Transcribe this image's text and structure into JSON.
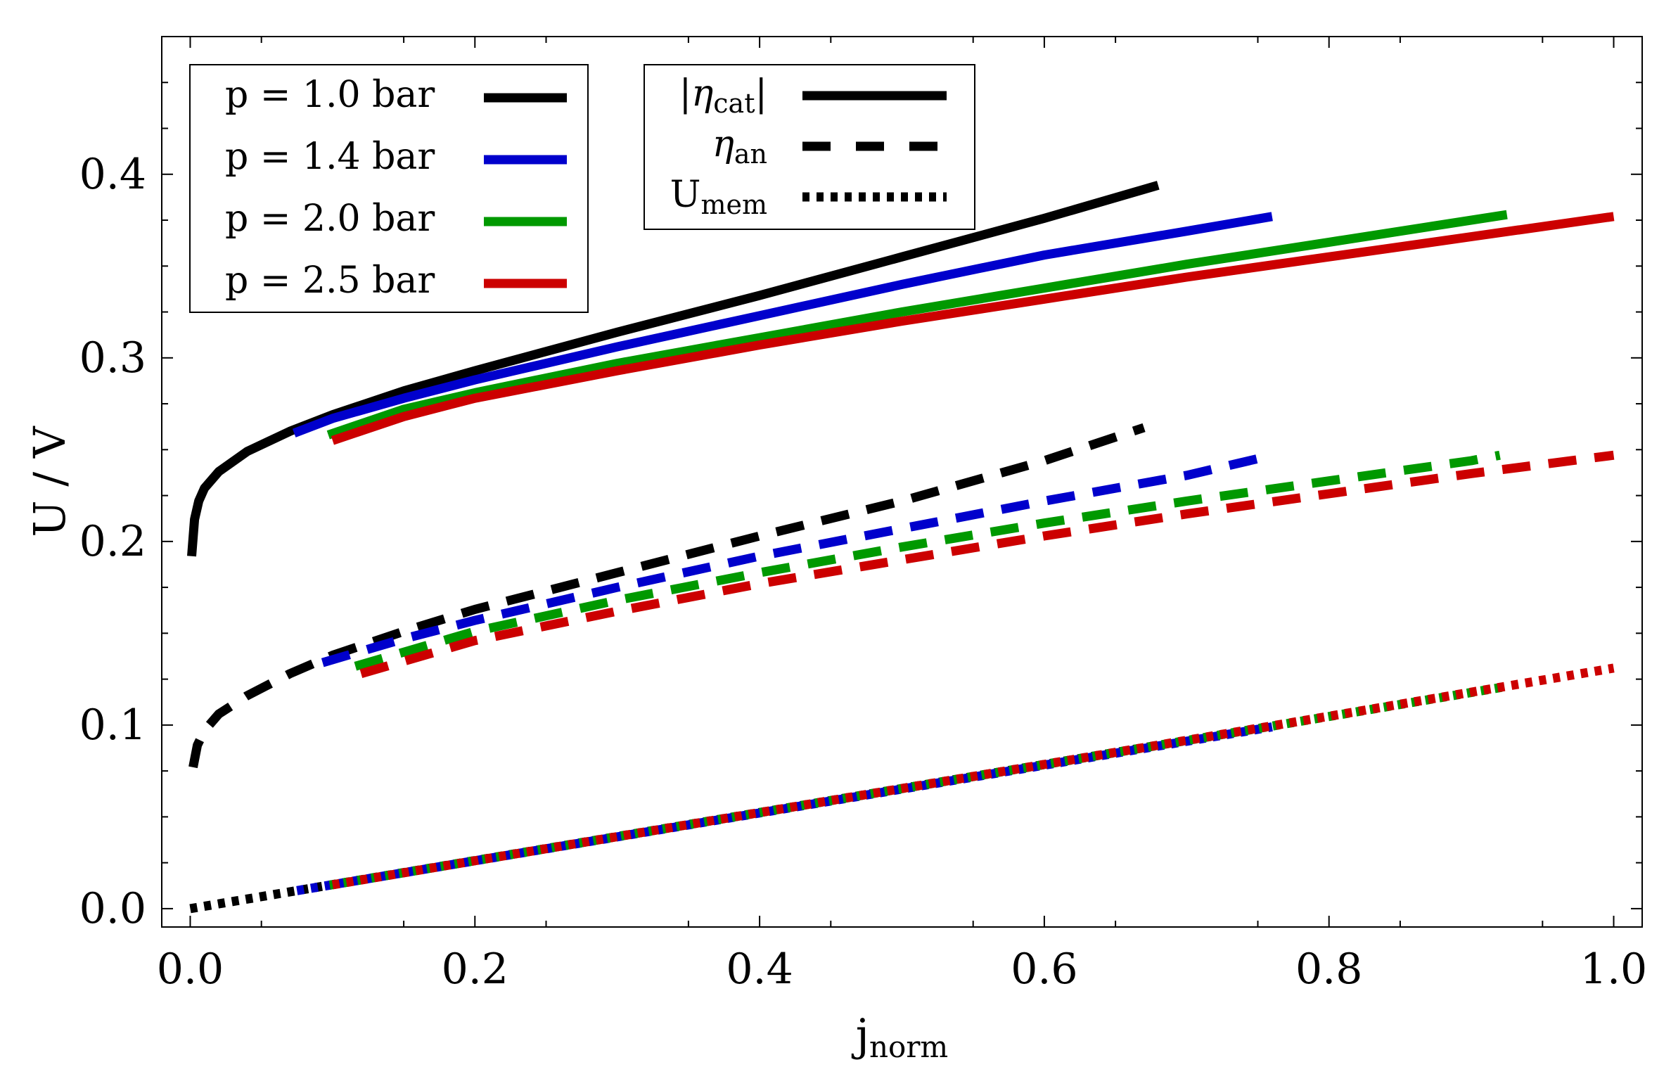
{
  "chart_data": {
    "type": "line",
    "xlabel": "j",
    "xlabel_sub": "norm",
    "ylabel": "U / V",
    "xlim": [
      -0.02,
      1.02
    ],
    "ylim": [
      -0.01,
      0.475
    ],
    "x_ticks": [
      "0.0",
      "0.2",
      "0.4",
      "0.6",
      "0.8",
      "1.0"
    ],
    "x_tick_values": [
      0,
      0.2,
      0.4,
      0.6,
      0.8,
      1.0
    ],
    "y_ticks": [
      "0.0",
      "0.1",
      "0.2",
      "0.3",
      "0.4"
    ],
    "y_tick_values": [
      0,
      0.1,
      0.2,
      0.3,
      0.4
    ],
    "grid": false,
    "colors": {
      "p1": "#000000",
      "p2": "#0000cc",
      "p3": "#009900",
      "p4": "#cc0000"
    },
    "pressure_legend": {
      "placement": "top-left",
      "entries": [
        {
          "label": "p = 1.0 bar",
          "color": "#000000"
        },
        {
          "label": "p = 1.4 bar",
          "color": "#0000cc"
        },
        {
          "label": "p = 2.0 bar",
          "color": "#009900"
        },
        {
          "label": "p = 2.5 bar",
          "color": "#cc0000"
        }
      ]
    },
    "style_legend": {
      "placement": "top-center",
      "entries": [
        {
          "symbol": "|η",
          "sub": "cat",
          "suffix": "|",
          "style": "solid"
        },
        {
          "symbol": "η",
          "sub": "an",
          "suffix": "",
          "style": "dashed"
        },
        {
          "symbol": "U",
          "sub": "mem",
          "suffix": "",
          "style": "dotted"
        }
      ]
    },
    "series": [
      {
        "pressure": "p = 1.0 bar",
        "quantity": "|η_cat|",
        "color": "#000000",
        "style": "solid",
        "x": [
          0.001,
          0.003,
          0.006,
          0.01,
          0.02,
          0.04,
          0.07,
          0.1,
          0.15,
          0.2,
          0.3,
          0.4,
          0.5,
          0.6,
          0.68
        ],
        "y": [
          0.192,
          0.212,
          0.222,
          0.229,
          0.238,
          0.249,
          0.26,
          0.269,
          0.282,
          0.293,
          0.314,
          0.334,
          0.355,
          0.376,
          0.394
        ]
      },
      {
        "pressure": "p = 1.4 bar",
        "quantity": "|η_cat|",
        "color": "#0000cc",
        "style": "solid",
        "x": [
          0.073,
          0.1,
          0.15,
          0.2,
          0.3,
          0.4,
          0.5,
          0.6,
          0.7,
          0.76
        ],
        "y": [
          0.259,
          0.267,
          0.278,
          0.288,
          0.306,
          0.323,
          0.34,
          0.356,
          0.369,
          0.377
        ]
      },
      {
        "pressure": "p = 2.0 bar",
        "quantity": "|η_cat|",
        "color": "#009900",
        "style": "solid",
        "x": [
          0.097,
          0.15,
          0.2,
          0.3,
          0.4,
          0.5,
          0.6,
          0.7,
          0.8,
          0.925
        ],
        "y": [
          0.258,
          0.272,
          0.281,
          0.297,
          0.311,
          0.325,
          0.338,
          0.351,
          0.363,
          0.378
        ]
      },
      {
        "pressure": "p = 2.5 bar",
        "quantity": "|η_cat|",
        "color": "#cc0000",
        "style": "solid",
        "x": [
          0.1,
          0.15,
          0.2,
          0.3,
          0.4,
          0.5,
          0.6,
          0.7,
          0.8,
          0.9,
          1.0
        ],
        "y": [
          0.255,
          0.268,
          0.278,
          0.293,
          0.307,
          0.32,
          0.332,
          0.344,
          0.355,
          0.366,
          0.377
        ]
      },
      {
        "pressure": "p = 1.0 bar",
        "quantity": "η_an",
        "color": "#000000",
        "style": "dashed",
        "x": [
          0.002,
          0.005,
          0.01,
          0.02,
          0.04,
          0.07,
          0.1,
          0.15,
          0.2,
          0.3,
          0.4,
          0.5,
          0.6,
          0.67
        ],
        "y": [
          0.077,
          0.089,
          0.097,
          0.106,
          0.116,
          0.128,
          0.138,
          0.151,
          0.163,
          0.183,
          0.203,
          0.222,
          0.244,
          0.262
        ]
      },
      {
        "pressure": "p = 1.4 bar",
        "quantity": "η_an",
        "color": "#0000cc",
        "style": "dashed",
        "x": [
          0.093,
          0.15,
          0.2,
          0.3,
          0.4,
          0.5,
          0.6,
          0.7,
          0.755
        ],
        "y": [
          0.134,
          0.147,
          0.157,
          0.175,
          0.192,
          0.207,
          0.222,
          0.236,
          0.246
        ]
      },
      {
        "pressure": "p = 2.0 bar",
        "quantity": "η_an",
        "color": "#009900",
        "style": "dashed",
        "x": [
          0.116,
          0.2,
          0.3,
          0.4,
          0.5,
          0.6,
          0.7,
          0.8,
          0.9,
          0.92
        ],
        "y": [
          0.132,
          0.151,
          0.168,
          0.183,
          0.197,
          0.21,
          0.222,
          0.233,
          0.244,
          0.247
        ]
      },
      {
        "pressure": "p = 2.5 bar",
        "quantity": "η_an",
        "color": "#cc0000",
        "style": "dashed",
        "x": [
          0.12,
          0.2,
          0.3,
          0.4,
          0.5,
          0.6,
          0.7,
          0.8,
          0.9,
          1.0
        ],
        "y": [
          0.128,
          0.146,
          0.162,
          0.177,
          0.19,
          0.203,
          0.215,
          0.226,
          0.237,
          0.247
        ]
      },
      {
        "pressure": "p = 1.0 bar",
        "quantity": "U_mem",
        "color": "#000000",
        "style": "dotted",
        "x": [
          0.0,
          0.68
        ],
        "y": [
          0.0,
          0.089
        ]
      },
      {
        "pressure": "p = 1.4 bar",
        "quantity": "U_mem",
        "color": "#0000cc",
        "style": "dotted",
        "x": [
          0.075,
          0.76
        ],
        "y": [
          0.0098,
          0.099
        ]
      },
      {
        "pressure": "p = 2.0 bar",
        "quantity": "U_mem",
        "color": "#009900",
        "style": "dotted",
        "x": [
          0.098,
          0.925
        ],
        "y": [
          0.0128,
          0.121
        ]
      },
      {
        "pressure": "p = 2.5 bar",
        "quantity": "U_mem",
        "color": "#cc0000",
        "style": "dotted",
        "x": [
          0.1,
          1.0
        ],
        "y": [
          0.013,
          0.131
        ]
      }
    ]
  }
}
